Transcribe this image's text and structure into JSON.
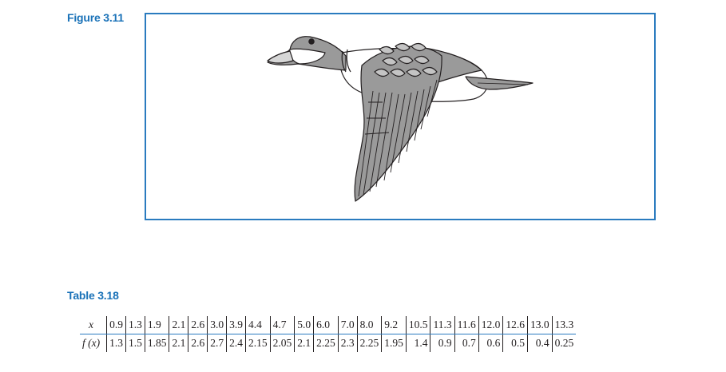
{
  "figure": {
    "label": "Figure 3.11"
  },
  "table": {
    "label": "Table 3.18",
    "x_header": "x",
    "f_header": "f (x)",
    "x_values": [
      "0.9",
      "1.3",
      "1.9",
      "2.1",
      "2.6",
      "3.0",
      "3.9",
      "4.4",
      "4.7",
      "5.0",
      "6.0",
      "7.0",
      "8.0",
      "9.2",
      "10.5",
      "11.3",
      "11.6",
      "12.0",
      "12.6",
      "13.0",
      "13.3"
    ],
    "f_values": [
      "1.3",
      "1.5",
      "1.85",
      "2.1",
      "2.6",
      "2.7",
      "2.4",
      "2.15",
      "2.05",
      "2.1",
      "2.25",
      "2.3",
      "2.25",
      "1.95",
      "1.4",
      "0.9",
      "0.7",
      "0.6",
      "0.5",
      "0.4",
      "0.25"
    ]
  },
  "colors": {
    "accent": "#1a72b8",
    "frame": "#2a7bbf"
  }
}
